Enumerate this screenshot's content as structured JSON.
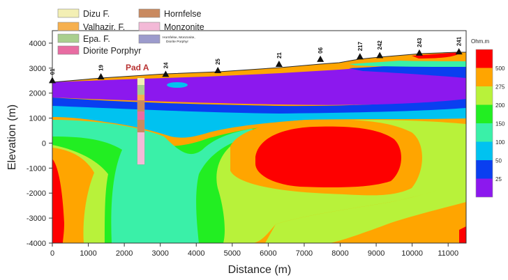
{
  "legend": {
    "entries": [
      {
        "label": "Dizu F.",
        "color": "#f3efb4"
      },
      {
        "label": "Valhazir. F.",
        "color": "#f6b04e"
      },
      {
        "label": "Epa. F.",
        "color": "#a9cf8e"
      },
      {
        "label": "Diorite Porphyr",
        "color": "#e86ca2"
      },
      {
        "label": "Hornfelse",
        "color": "#c98a60"
      },
      {
        "label": "Monzonite",
        "color": "#f3b9d7"
      },
      {
        "label": "Hornfelse, Monzonite, Diorite Porphyr",
        "color": "#9c9bcc"
      }
    ]
  },
  "well": {
    "label": "Pad A",
    "x_m": 2500,
    "top_elev_m": 2600,
    "bottom_elev_m": -900
  },
  "stations": [
    {
      "label": "01",
      "distance_m": 0
    },
    {
      "label": "19",
      "distance_m": 1350
    },
    {
      "label": "24",
      "distance_m": 3150
    },
    {
      "label": "25",
      "distance_m": 4600
    },
    {
      "label": "21",
      "distance_m": 6300
    },
    {
      "label": "06",
      "distance_m": 7450
    },
    {
      "label": "217",
      "distance_m": 8550
    },
    {
      "label": "242",
      "distance_m": 9100
    },
    {
      "label": "243",
      "distance_m": 10200
    },
    {
      "label": "241",
      "distance_m": 11300
    }
  ],
  "colorbar": {
    "unit": "Ohm.m",
    "levels": [
      {
        "label": "500",
        "color": "#fe0000"
      },
      {
        "label": "275",
        "color": "#ffa500"
      },
      {
        "label": "200",
        "color": "#b8f23a"
      },
      {
        "label": "150",
        "color": "#22ee22"
      },
      {
        "label": "100",
        "color": "#3af0a8"
      },
      {
        "label": "50",
        "color": "#00c2f0"
      },
      {
        "label": "25",
        "color": "#0a3ff0"
      },
      {
        "label": "",
        "color": "#8c18ee"
      }
    ]
  },
  "chart_data": {
    "type": "heatmap",
    "title": "",
    "xlabel": "Distance (m)",
    "ylabel": "Elevation (m)",
    "xlim": [
      0,
      11500
    ],
    "ylim": [
      -4000,
      4500
    ],
    "x_ticks": [
      0,
      1000,
      2000,
      3000,
      4000,
      5000,
      6000,
      7000,
      8000,
      9000,
      10000,
      11000
    ],
    "y_ticks": [
      -4000,
      -3000,
      -2000,
      -1000,
      0,
      1000,
      2000,
      3000,
      4000
    ],
    "surface_profile": [
      [
        0,
        2400
      ],
      [
        1350,
        2550
      ],
      [
        3150,
        2650
      ],
      [
        4600,
        2800
      ],
      [
        6300,
        3050
      ],
      [
        7450,
        3250
      ],
      [
        8550,
        3350
      ],
      [
        9100,
        3400
      ],
      [
        10200,
        3500
      ],
      [
        11300,
        3550
      ]
    ],
    "grid": false
  }
}
